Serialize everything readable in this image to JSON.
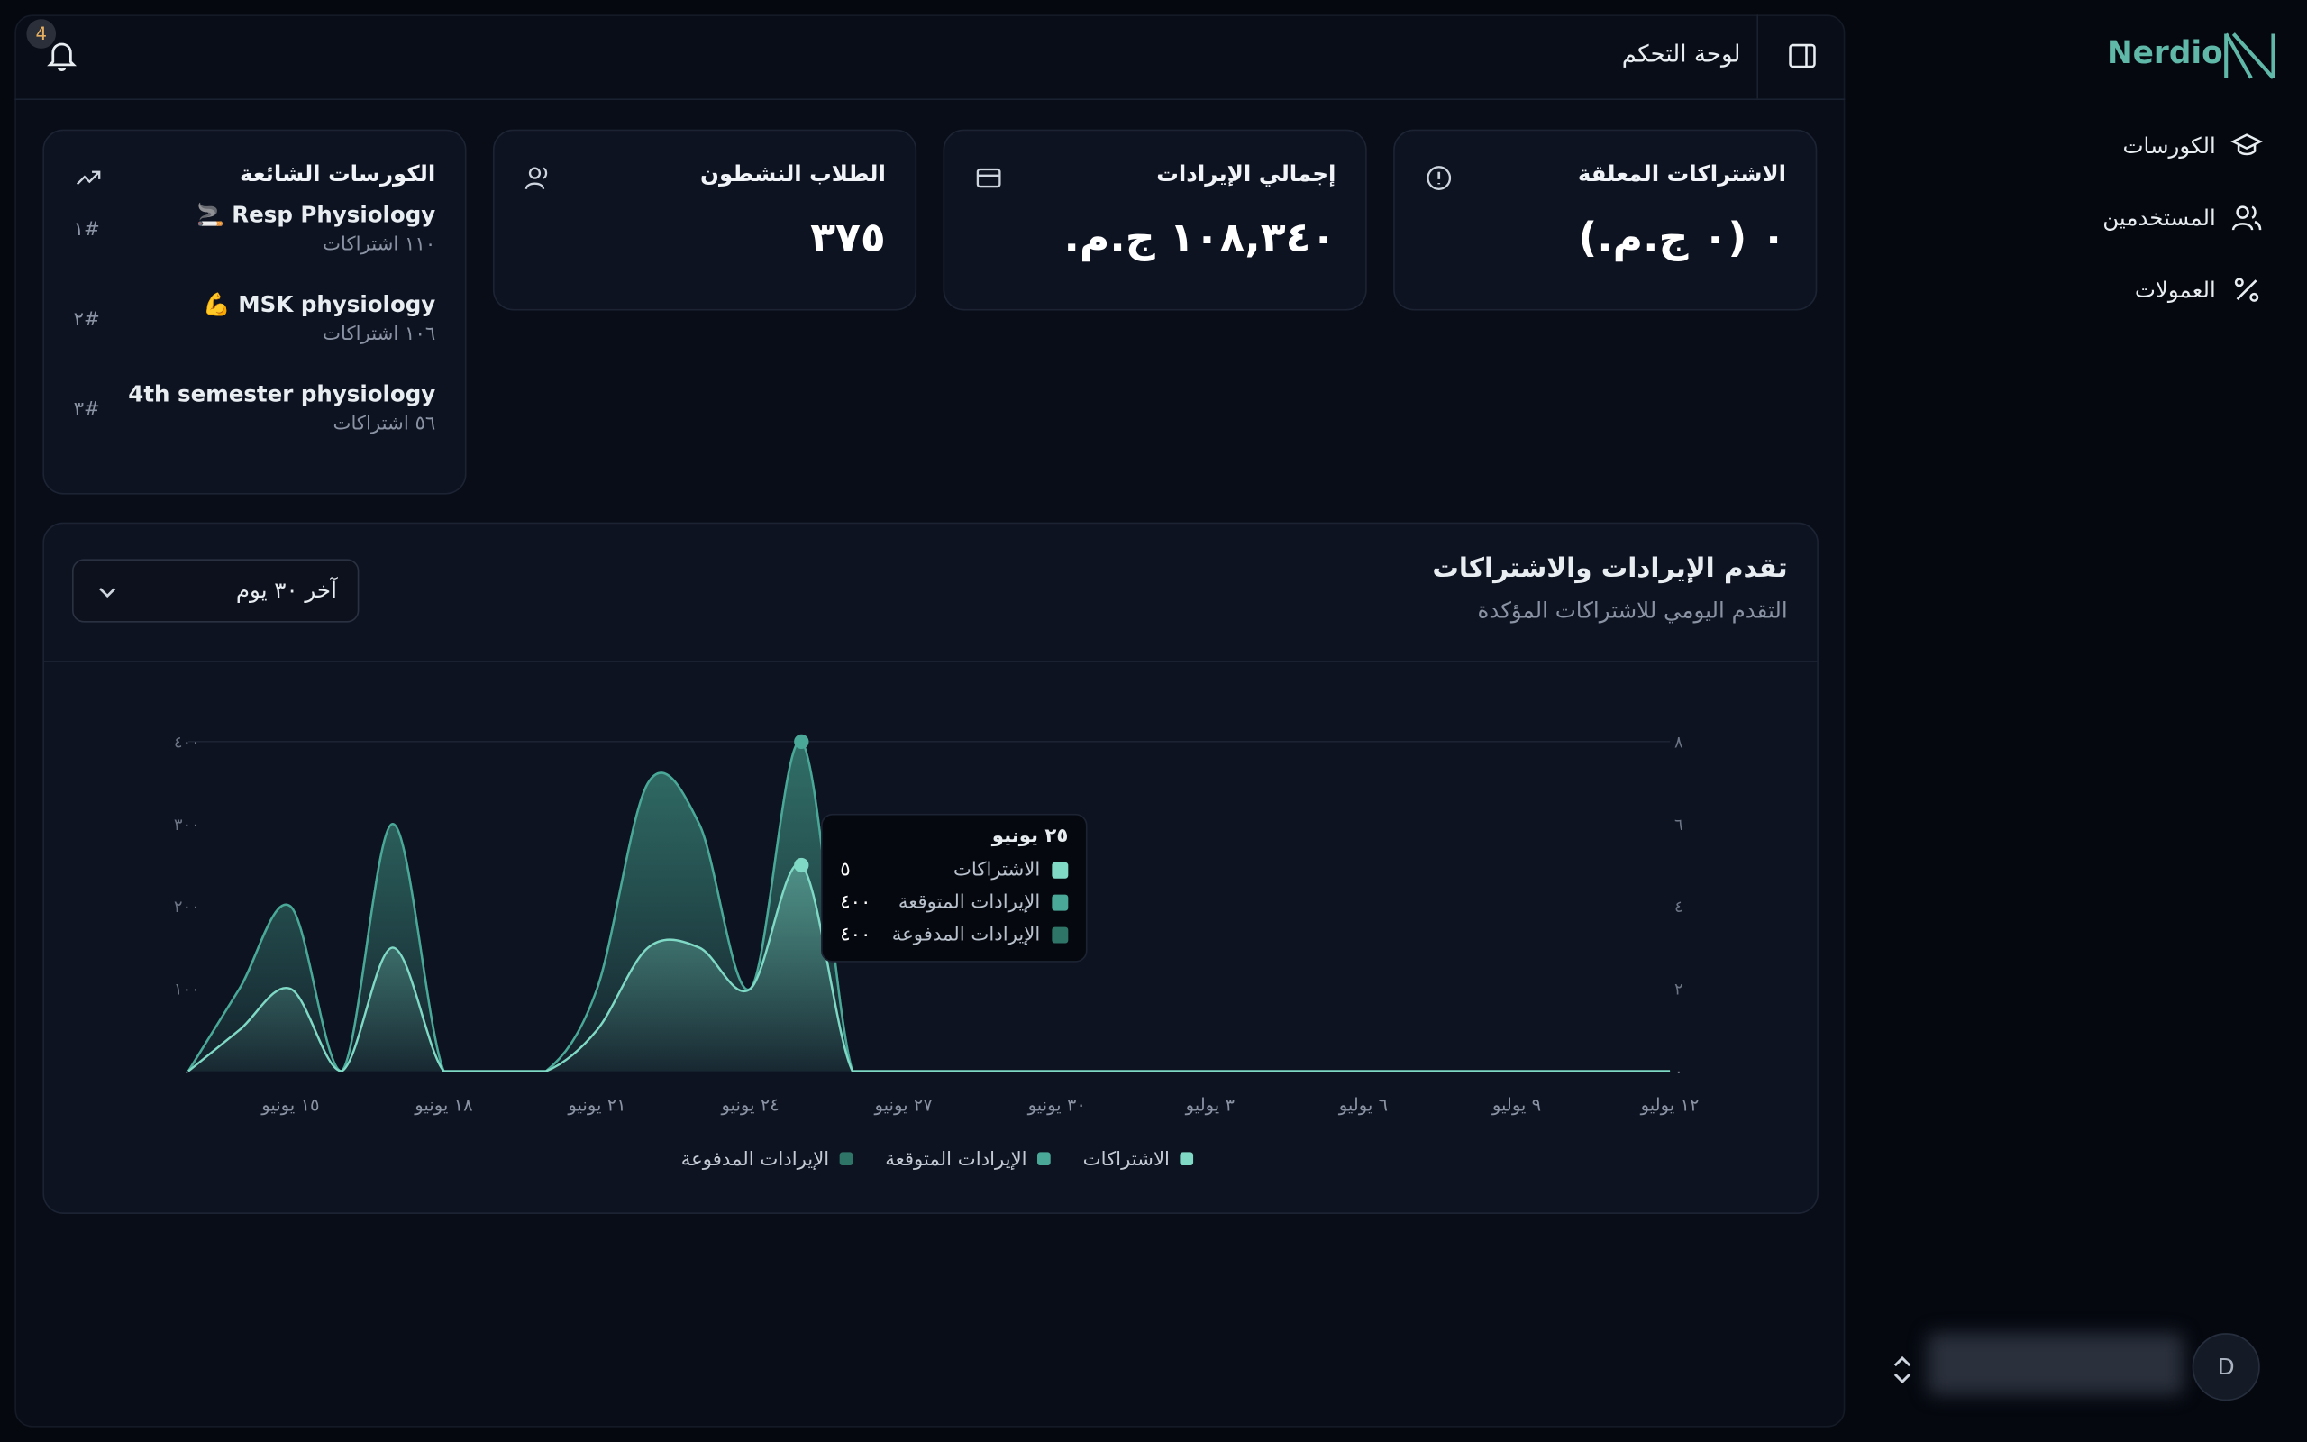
{
  "sidebar": {
    "brand": "Nerdio",
    "nav": [
      "الكورسات",
      "المستخدمين",
      "العمولات"
    ],
    "user_initial": "D"
  },
  "header": {
    "title": "لوحة التحكم",
    "notification_count": 4
  },
  "stats": [
    {
      "title": "الاشتراكات المعلقة",
      "value": "٠ (٠ ج.م.)"
    },
    {
      "title": "إجمالي الإيرادات",
      "value": "١٠٨,٣٤٠ ج.م."
    },
    {
      "title": "الطلاب النشطون",
      "value": "٣٧٥"
    }
  ],
  "popular_courses": {
    "title": "الكورسات الشائعة",
    "items": [
      {
        "name": "Resp Physiology 🚬",
        "subtitle": "١١٠ اشتراكات",
        "rank": "#١"
      },
      {
        "name": "MSK physiology 💪",
        "subtitle": "١٠٦ اشتراكات",
        "rank": "#٢"
      },
      {
        "name": "4th semester physiology",
        "subtitle": "٥٦ اشتراكات",
        "rank": "#٣"
      }
    ]
  },
  "chart_controls": {
    "range": "آخر ٣٠ يوم"
  },
  "tooltip": {
    "title": "٢٥ يونيو",
    "items": [
      {
        "label": "الاشتراكات",
        "value": "٥"
      },
      {
        "label": "الإيرادات المتوقعة",
        "value": "٤٠٠"
      },
      {
        "label": "الإيرادات المدفوعة",
        "value": "٤٠٠"
      }
    ]
  },
  "chart_data": {
    "type": "area",
    "title": "تقدم الإيرادات والاشتراكات",
    "subtitle": "التقدم اليومي للاشتراكات المؤكدة",
    "categories": [
      null,
      null,
      "١٥ يونيو",
      null,
      null,
      "١٨ يونيو",
      null,
      null,
      "٢١ يونيو",
      null,
      null,
      "٢٤ يونيو",
      null,
      null,
      "٢٧ يونيو",
      null,
      null,
      "٣٠ يونيو",
      null,
      null,
      "٣ يوليو",
      null,
      null,
      "٦ يوليو",
      null,
      null,
      "٩ يوليو",
      null,
      null,
      "١٢ يوليو"
    ],
    "ylim": [
      0,
      400
    ],
    "yticks": [
      {
        "value": 0,
        "label": "٠"
      },
      {
        "value": 100,
        "label": "١٠٠"
      },
      {
        "value": 200,
        "label": "٢٠٠"
      },
      {
        "value": 300,
        "label": "٣٠٠"
      },
      {
        "value": 400,
        "label": "٤٠٠"
      }
    ],
    "y2lim": [
      0,
      8
    ],
    "y2ticks": [
      {
        "value": 0,
        "label": "٠"
      },
      {
        "value": 2,
        "label": "٢"
      },
      {
        "value": 4,
        "label": "٤"
      },
      {
        "value": 6,
        "label": "٦"
      },
      {
        "value": 8,
        "label": "٨"
      }
    ],
    "legend": "bottom",
    "highlight_index": 12,
    "series": [
      {
        "name": "الاشتراكات",
        "color": "#7fd9c5",
        "axis": "y2",
        "values": [
          0,
          1,
          2,
          0,
          3,
          0,
          0,
          0,
          1,
          3,
          3,
          2,
          5,
          0,
          0,
          0,
          0,
          0,
          0,
          0,
          0,
          0,
          0,
          0,
          0,
          0,
          0,
          0,
          0,
          0
        ]
      },
      {
        "name": "الإيرادات المتوقعة",
        "color": "#4aa898",
        "values": [
          0,
          100,
          200,
          0,
          300,
          0,
          0,
          0,
          100,
          350,
          300,
          100,
          400,
          0,
          0,
          0,
          0,
          0,
          0,
          0,
          0,
          0,
          0,
          0,
          0,
          0,
          0,
          0,
          0,
          0
        ]
      },
      {
        "name": "الإيرادات المدفوعة",
        "color": "#2f7567",
        "values": [
          0,
          100,
          200,
          0,
          300,
          0,
          0,
          0,
          100,
          350,
          300,
          100,
          400,
          0,
          0,
          0,
          0,
          0,
          0,
          0,
          0,
          0,
          0,
          0,
          0,
          0,
          0,
          0,
          0,
          0
        ]
      }
    ]
  }
}
